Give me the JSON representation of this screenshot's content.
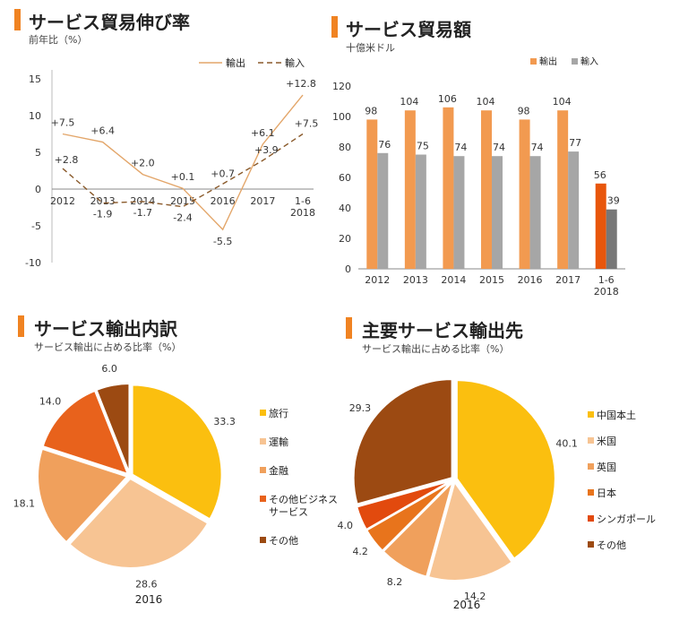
{
  "colors": {
    "export": "#f29a50",
    "import": "#a6a6a6",
    "export_latest": "#e8560c",
    "import_latest": "#777777",
    "line_export": "#e3a66a",
    "line_import": "#8a5a2b",
    "title_bar": "#f08322"
  },
  "panel1": {
    "title": "サービス貿易伸び率",
    "subtitle": "前年比（%）"
  },
  "panel2": {
    "title": "サービス貿易額",
    "subtitle": "十億米ドル"
  },
  "panel3": {
    "title": "サービス輸出内訳",
    "subtitle": "サービス輸出に占める比率（%）"
  },
  "panel4": {
    "title": "主要サービス輸出先",
    "subtitle": "サービス輸出に占める比率（%）"
  },
  "chart_data": [
    {
      "type": "line",
      "title": "サービス貿易伸び率",
      "ylabel": "前年比（%）",
      "x": [
        "2012",
        "2013",
        "2014",
        "2015",
        "2016",
        "2017",
        "1-6\n2018"
      ],
      "ylim": [
        -10,
        15
      ],
      "yticks": [
        -10,
        -5,
        0,
        5,
        10,
        15
      ],
      "legend_position": "top-right",
      "series": [
        {
          "name": "輸出",
          "values": [
            7.5,
            6.4,
            2.0,
            0.1,
            -5.5,
            6.1,
            12.8
          ],
          "labels": [
            "+7.5",
            "+6.4",
            "+2.0",
            "+0.1",
            "-5.5",
            "+6.1",
            "+12.8"
          ]
        },
        {
          "name": "輸入",
          "values": [
            2.8,
            -1.9,
            -1.7,
            -2.4,
            0.7,
            3.9,
            7.5
          ],
          "labels": [
            "+2.8",
            "-1.9",
            "-1.7",
            "-2.4",
            "+0.7",
            "+3.9",
            "+7.5"
          ]
        }
      ]
    },
    {
      "type": "bar",
      "title": "サービス貿易額",
      "ylabel": "十億米ドル",
      "categories": [
        "2012",
        "2013",
        "2014",
        "2015",
        "2016",
        "2017",
        "1-6\n2018"
      ],
      "ylim": [
        0,
        120
      ],
      "yticks": [
        0,
        20,
        40,
        60,
        80,
        100,
        120
      ],
      "legend_position": "top-right",
      "series": [
        {
          "name": "輸出",
          "values": [
            98,
            104,
            106,
            104,
            98,
            104,
            56
          ]
        },
        {
          "name": "輸入",
          "values": [
            76,
            75,
            74,
            74,
            74,
            77,
            39
          ]
        }
      ]
    },
    {
      "type": "pie",
      "title": "サービス輸出内訳",
      "year": "2016",
      "slices": [
        {
          "label": "旅行",
          "value": 33.3,
          "color": "#fbbf0f"
        },
        {
          "label": "運輸",
          "value": 28.6,
          "color": "#f7c493"
        },
        {
          "label": "金融",
          "value": 18.1,
          "color": "#f0a05c"
        },
        {
          "label": "その他ビジネス\nサービス",
          "value": 14.0,
          "color": "#e8621c"
        },
        {
          "label": "その他",
          "value": 6.0,
          "color": "#9c4a12"
        }
      ]
    },
    {
      "type": "pie",
      "title": "主要サービス輸出先",
      "year": "2016",
      "slices": [
        {
          "label": "中国本土",
          "value": 40.1,
          "color": "#fbbf0f"
        },
        {
          "label": "米国",
          "value": 14.2,
          "color": "#f7c493"
        },
        {
          "label": "英国",
          "value": 8.2,
          "color": "#f0a05c"
        },
        {
          "label": "日本",
          "value": 4.2,
          "color": "#e8741c"
        },
        {
          "label": "シンガポール",
          "value": 4.0,
          "color": "#e24a0e"
        },
        {
          "label": "その他",
          "value": 29.3,
          "color": "#9c4a12"
        }
      ]
    }
  ]
}
